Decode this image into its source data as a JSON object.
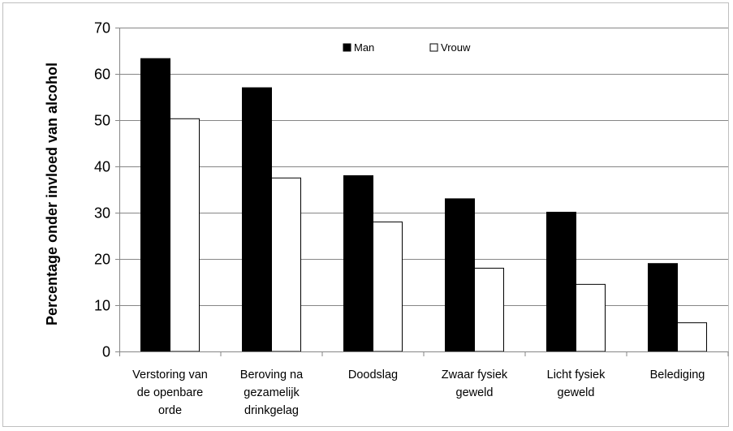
{
  "chart_data": {
    "type": "bar",
    "title": "",
    "xlabel": "",
    "ylabel": "Percentage onder invloed van alcohol",
    "ylim": [
      0,
      70
    ],
    "yticks": [
      0,
      10,
      20,
      30,
      40,
      50,
      60,
      70
    ],
    "grid": true,
    "legend_position": "top-center",
    "categories": [
      [
        "Verstoring van",
        "de openbare",
        "orde"
      ],
      [
        "Beroving na",
        "gezamelijk",
        "drinkgelag"
      ],
      [
        "Doodslag"
      ],
      [
        "Zwaar fysiek",
        "geweld"
      ],
      [
        "Licht fysiek",
        "geweld"
      ],
      [
        "Belediging"
      ]
    ],
    "series": [
      {
        "name": "Man",
        "color": "#000000",
        "values": [
          63.3,
          57,
          38,
          33,
          30.1,
          19
        ]
      },
      {
        "name": "Vrouw",
        "color": "#ffffff",
        "values": [
          50.3,
          37.5,
          28,
          18,
          14.5,
          6.2
        ]
      }
    ]
  }
}
